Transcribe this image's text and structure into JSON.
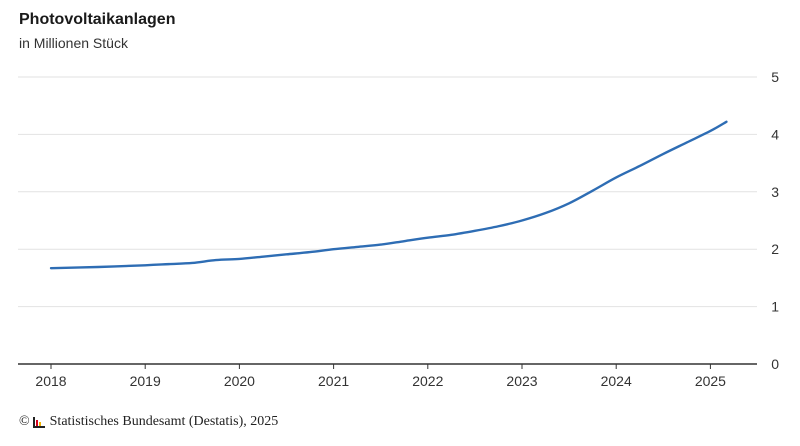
{
  "chart_data": {
    "type": "line",
    "title": "Photovoltaikanlagen",
    "subtitle": "in Millionen Stück",
    "ylim": [
      0,
      5
    ],
    "y_ticks": [
      0,
      1,
      2,
      3,
      4,
      5
    ],
    "xlim": [
      2018,
      2025.5
    ],
    "x_ticks": [
      "2018",
      "2019",
      "2020",
      "2021",
      "2022",
      "2023",
      "2024",
      "2025"
    ],
    "grid": true,
    "color": "#2e6db4",
    "series": [
      {
        "x": [
          2018.0,
          2018.5,
          2019.0,
          2019.25,
          2019.5,
          2019.75,
          2020.0,
          2020.25,
          2020.5,
          2020.75,
          2021.0,
          2021.25,
          2021.5,
          2021.75,
          2022.0,
          2022.25,
          2022.5,
          2022.75,
          2023.0,
          2023.25,
          2023.5,
          2023.75,
          2024.0,
          2024.25,
          2024.5,
          2024.75,
          2025.0,
          2025.17
        ],
        "y": [
          1.67,
          1.69,
          1.72,
          1.74,
          1.76,
          1.81,
          1.83,
          1.87,
          1.91,
          1.95,
          2.0,
          2.04,
          2.08,
          2.14,
          2.2,
          2.25,
          2.32,
          2.4,
          2.5,
          2.63,
          2.8,
          3.02,
          3.25,
          3.45,
          3.66,
          3.86,
          4.06,
          4.22
        ]
      }
    ]
  },
  "footer": {
    "copyright_symbol": "©",
    "text": "Statistisches Bundesamt (Destatis), 2025"
  }
}
